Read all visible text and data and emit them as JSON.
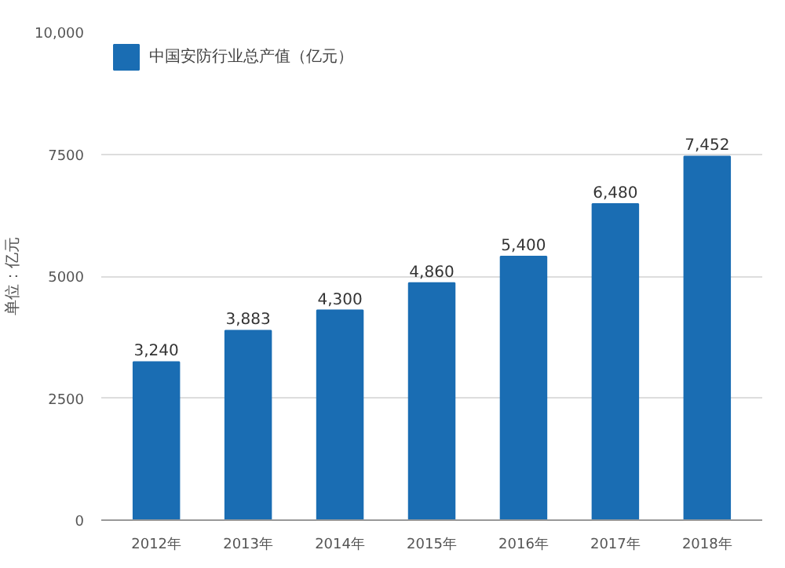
{
  "chart_data": {
    "type": "bar",
    "ylabel": "单位：亿元",
    "categories": [
      "2012年",
      "2013年",
      "2014年",
      "2015年",
      "2016年",
      "2017年",
      "2018年"
    ],
    "series": [
      {
        "name": "中国安防行业总产值（亿元）",
        "color": "#1a6db3",
        "values": [
          3240,
          3883,
          4300,
          4860,
          5400,
          6480,
          7452
        ]
      }
    ],
    "value_labels": [
      "3,240",
      "3,883",
      "4,300",
      "4,860",
      "5,400",
      "6,480",
      "7,452"
    ],
    "ylim": [
      0,
      10000
    ],
    "yticks": [
      0,
      2500,
      5000,
      7500,
      {
        "value": 10000,
        "label": "10,000"
      }
    ],
    "grid": "y",
    "legend": "top left"
  }
}
